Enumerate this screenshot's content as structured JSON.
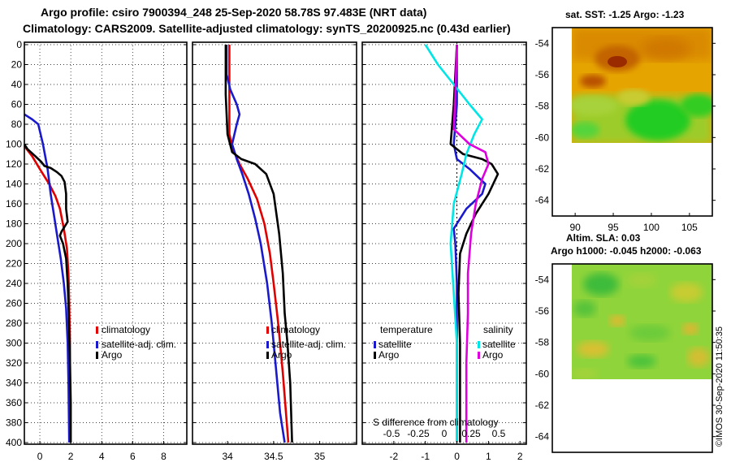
{
  "titles": {
    "line1": "Argo profile: csiro 7900394_248 25-Sep-2020 58.78S 97.483E (NRT data)",
    "line2": "Climatology: CARS2009. Satellite-adjusted climatology: synTS_20200925.nc (0.43d earlier)"
  },
  "credit": "©IMOS 30-Sep-2020 11:50:35",
  "colors": {
    "climatology": "#e00000",
    "satellite": "#1a1acc",
    "argo": "#000000",
    "sat_salinity": "#00e5e5",
    "argo_salinity": "#dd00dd"
  },
  "chart_data": [
    {
      "type": "line",
      "name": "temperature",
      "ylim": [
        400,
        0
      ],
      "xlim": [
        -1,
        9.5
      ],
      "yticks": [
        0,
        20,
        40,
        60,
        80,
        100,
        120,
        140,
        160,
        180,
        200,
        220,
        240,
        260,
        280,
        300,
        320,
        340,
        360,
        380,
        400
      ],
      "ytick_labels": [
        "0",
        "20",
        "40",
        "60",
        "80",
        "100",
        "120",
        "140",
        "160",
        "180",
        "200",
        "220",
        "240",
        "260",
        "280",
        "300",
        "320",
        "340",
        "360",
        "380",
        "400"
      ],
      "xticks": [
        0,
        2,
        4,
        6,
        8
      ],
      "xtick_labels": [
        "0",
        "2",
        "4",
        "6",
        "8"
      ],
      "legend": [
        "climatology",
        "satellite-adj. clim.",
        "Argo"
      ],
      "series": [
        {
          "name": "climatology",
          "color": "#e00000",
          "points": [
            [
              -1,
              102
            ],
            [
              -0.5,
              112
            ],
            [
              0,
              125
            ],
            [
              0.6,
              140
            ],
            [
              1.0,
              152
            ],
            [
              1.3,
              165
            ],
            [
              1.55,
              185
            ],
            [
              1.75,
              205
            ],
            [
              1.85,
              230
            ],
            [
              1.9,
              260
            ],
            [
              1.95,
              300
            ],
            [
              1.95,
              340
            ],
            [
              1.95,
              400
            ]
          ]
        },
        {
          "name": "satellite-adj. clim.",
          "color": "#1a1acc",
          "points": [
            [
              -1,
              70
            ],
            [
              -0.5,
              75
            ],
            [
              -0.1,
              80
            ],
            [
              0.2,
              100
            ],
            [
              0.5,
              125
            ],
            [
              0.7,
              150
            ],
            [
              0.9,
              170
            ],
            [
              1.1,
              190
            ],
            [
              1.35,
              215
            ],
            [
              1.55,
              240
            ],
            [
              1.7,
              265
            ],
            [
              1.8,
              300
            ],
            [
              1.85,
              340
            ],
            [
              1.9,
              400
            ]
          ]
        },
        {
          "name": "Argo",
          "color": "#000000",
          "points": [
            [
              -1,
              100
            ],
            [
              -0.8,
              105
            ],
            [
              -0.3,
              112
            ],
            [
              0.1,
              118
            ],
            [
              0.3,
              122
            ],
            [
              0.7,
              124
            ],
            [
              1.1,
              128
            ],
            [
              1.4,
              132
            ],
            [
              1.6,
              138
            ],
            [
              1.7,
              150
            ],
            [
              1.7,
              165
            ],
            [
              1.8,
              178
            ],
            [
              1.4,
              188
            ],
            [
              1.3,
              192
            ],
            [
              1.5,
              200
            ],
            [
              1.7,
              215
            ],
            [
              1.8,
              240
            ],
            [
              1.85,
              260
            ],
            [
              1.9,
              290
            ],
            [
              1.95,
              320
            ],
            [
              2.0,
              360
            ],
            [
              2.0,
              400
            ]
          ]
        }
      ]
    },
    {
      "type": "line",
      "name": "salinity",
      "ylim": [
        400,
        0
      ],
      "xlim": [
        33.62,
        35.4
      ],
      "xticks": [
        34,
        34.5,
        35
      ],
      "xtick_labels": [
        "34",
        "34.5",
        "35"
      ],
      "legend": [
        "climatology",
        "satellite-adj. clim.",
        "Argo"
      ],
      "series": [
        {
          "name": "climatology",
          "color": "#e00000",
          "points": [
            [
              34.02,
              0
            ],
            [
              34.02,
              40
            ],
            [
              34.02,
              90
            ],
            [
              34.06,
              105
            ],
            [
              34.13,
              120
            ],
            [
              34.22,
              135
            ],
            [
              34.32,
              155
            ],
            [
              34.4,
              180
            ],
            [
              34.46,
              210
            ],
            [
              34.5,
              240
            ],
            [
              34.55,
              280
            ],
            [
              34.6,
              330
            ],
            [
              34.66,
              400
            ]
          ]
        },
        {
          "name": "satellite-adj. clim.",
          "color": "#1a1acc",
          "points": [
            [
              33.99,
              0
            ],
            [
              33.99,
              30
            ],
            [
              34.03,
              45
            ],
            [
              34.1,
              60
            ],
            [
              34.13,
              70
            ],
            [
              34.1,
              80
            ],
            [
              34.05,
              100
            ],
            [
              34.1,
              115
            ],
            [
              34.16,
              130
            ],
            [
              34.23,
              150
            ],
            [
              34.3,
              175
            ],
            [
              34.36,
              200
            ],
            [
              34.43,
              240
            ],
            [
              34.48,
              280
            ],
            [
              34.53,
              330
            ],
            [
              34.57,
              370
            ],
            [
              34.62,
              400
            ]
          ]
        },
        {
          "name": "Argo",
          "color": "#000000",
          "points": [
            [
              33.98,
              0
            ],
            [
              33.98,
              50
            ],
            [
              34.0,
              90
            ],
            [
              34.05,
              108
            ],
            [
              34.15,
              115
            ],
            [
              34.3,
              120
            ],
            [
              34.42,
              130
            ],
            [
              34.5,
              150
            ],
            [
              34.53,
              170
            ],
            [
              34.56,
              190
            ],
            [
              34.6,
              230
            ],
            [
              34.62,
              270
            ],
            [
              34.65,
              300
            ],
            [
              34.68,
              340
            ],
            [
              34.7,
              400
            ]
          ]
        }
      ]
    },
    {
      "type": "line",
      "name": "difference",
      "ylim": [
        400,
        0
      ],
      "xlim": [
        -3,
        2.2
      ],
      "xticks": [
        -2,
        -1,
        0,
        1,
        2
      ],
      "xtick_labels": [
        "-2",
        "-1",
        "0",
        "1",
        "2"
      ],
      "salinity_axis_labels": [
        "-0.5",
        "-0.25",
        "0",
        "0.25",
        "0.5"
      ],
      "axis_note": "S difference from climatology",
      "legend_temperature": {
        "heading": "temperature",
        "items": [
          "satellite",
          "Argo"
        ]
      },
      "legend_salinity": {
        "heading": "salinity",
        "items": [
          "satellite",
          "Argo"
        ]
      },
      "series": [
        {
          "name": "temperature satellite",
          "color": "#1a1acc",
          "points": [
            [
              0,
              0
            ],
            [
              0,
              60
            ],
            [
              -0.1,
              100
            ],
            [
              0,
              115
            ],
            [
              0.4,
              125
            ],
            [
              0.9,
              140
            ],
            [
              0.8,
              150
            ],
            [
              0.3,
              165
            ],
            [
              -0.1,
              185
            ],
            [
              -0.05,
              200
            ],
            [
              0,
              240
            ],
            [
              0,
              300
            ],
            [
              0,
              400
            ]
          ]
        },
        {
          "name": "temperature Argo",
          "color": "#000000",
          "points": [
            [
              0,
              0
            ],
            [
              -0.1,
              60
            ],
            [
              -0.2,
              100
            ],
            [
              0.2,
              110
            ],
            [
              0.8,
              115
            ],
            [
              1.1,
              120
            ],
            [
              1.3,
              130
            ],
            [
              1.0,
              150
            ],
            [
              0.6,
              170
            ],
            [
              0.3,
              190
            ],
            [
              0.1,
              210
            ],
            [
              0.05,
              250
            ],
            [
              0.1,
              300
            ],
            [
              0.1,
              400
            ]
          ]
        },
        {
          "name": "salinity satellite",
          "color": "#00e5e5",
          "points": [
            [
              -1,
              0
            ],
            [
              -0.6,
              20
            ],
            [
              -0.1,
              40
            ],
            [
              0.4,
              60
            ],
            [
              0.8,
              75
            ],
            [
              0.55,
              90
            ],
            [
              0.3,
              110
            ],
            [
              0.15,
              130
            ],
            [
              -0.1,
              160
            ],
            [
              -0.2,
              200
            ],
            [
              -0.1,
              250
            ],
            [
              0,
              300
            ],
            [
              0,
              400
            ]
          ]
        },
        {
          "name": "salinity Argo",
          "color": "#dd00dd",
          "points": [
            [
              0,
              0
            ],
            [
              -0.05,
              50
            ],
            [
              -0.1,
              85
            ],
            [
              0.4,
              100
            ],
            [
              0.9,
              108
            ],
            [
              1.0,
              120
            ],
            [
              0.8,
              135
            ],
            [
              0.6,
              160
            ],
            [
              0.45,
              190
            ],
            [
              0.35,
              230
            ],
            [
              0.35,
              270
            ],
            [
              0.3,
              320
            ],
            [
              0.3,
              400
            ]
          ]
        }
      ]
    },
    {
      "type": "heatmap",
      "name": "sst-map",
      "title": "sat. SST: -1.25 Argo: -1.23",
      "lat_range": [
        -65,
        -53
      ],
      "lon_range": [
        87,
        108
      ],
      "lat_ticks": [
        -54,
        -56,
        -58,
        -60,
        -62,
        -64
      ],
      "lat_tick_labels": [
        "-54",
        "-56",
        "-58",
        "-60",
        "-62",
        "-64"
      ],
      "lon_ticks": [
        90,
        95,
        100,
        105
      ],
      "lon_tick_labels": [
        "90",
        "95",
        "100",
        "105"
      ]
    },
    {
      "type": "heatmap",
      "name": "sla-map",
      "title_line1": "Altim. SLA: 0.03",
      "title_line2": "Argo h1000: -0.045 h2000: -0.063",
      "lat_range": [
        -65,
        -53
      ],
      "lat_ticks": [
        -54,
        -56,
        -58,
        -60,
        -62,
        -64
      ],
      "lat_tick_labels": [
        "-54",
        "-56",
        "-58",
        "-60",
        "-62",
        "-64"
      ]
    }
  ]
}
